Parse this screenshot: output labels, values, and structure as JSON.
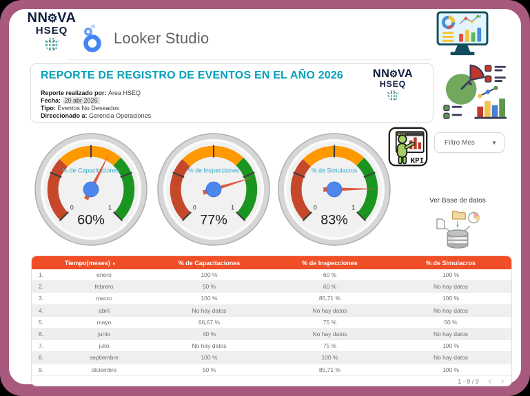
{
  "colors": {
    "frame": "#A85A7E",
    "title_accent": "#00A1BA",
    "table_header": "#F04E27",
    "gauge_label": "#2FB0CC",
    "needle": "#E2593E",
    "hub": "#4D86EC"
  },
  "brand": {
    "part1": "NN",
    "gear_glyph": "⚙",
    "part2": "VA",
    "line2": "HSEQ"
  },
  "app": {
    "name": "Looker Studio"
  },
  "title_card": {
    "title": "REPORTE DE REGISTRO DE EVENTOS EN EL AÑO 2026",
    "meta": [
      {
        "label": "Reporte realizado por:",
        "value": "Área HSEQ",
        "highlight": false
      },
      {
        "label": "Fecha:",
        "value": "20 abr 2026",
        "highlight": true
      },
      {
        "label": "Tipo:",
        "value": "Eventos No Deseados",
        "highlight": false
      },
      {
        "label": "Direccionado a:",
        "value": "Gerencia Operaciones",
        "highlight": false
      }
    ]
  },
  "controls": {
    "filter_label": "Filtro Mes",
    "kpi_caption": "KPI",
    "view_db_label": "Ver Base de datos"
  },
  "chart_data": [
    {
      "type": "gauge",
      "title": "% de Capacitaciones",
      "min": 0,
      "max": 1,
      "value": 0.6,
      "display": "60%",
      "min_label": "0",
      "max_label": "1",
      "zones": [
        {
          "from": 0,
          "to": 0.33,
          "color": "#C5482B"
        },
        {
          "from": 0.33,
          "to": 0.66,
          "color": "#FF9900"
        },
        {
          "from": 0.66,
          "to": 1,
          "color": "#1A9620"
        }
      ]
    },
    {
      "type": "gauge",
      "title": "% de Inspecciones",
      "min": 0,
      "max": 1,
      "value": 0.77,
      "display": "77%",
      "min_label": "0",
      "max_label": "1",
      "zones": [
        {
          "from": 0,
          "to": 0.33,
          "color": "#C5482B"
        },
        {
          "from": 0.33,
          "to": 0.66,
          "color": "#FF9900"
        },
        {
          "from": 0.66,
          "to": 1,
          "color": "#1A9620"
        }
      ]
    },
    {
      "type": "gauge",
      "title": "% de Simulacros",
      "min": 0,
      "max": 1,
      "value": 0.83,
      "display": "83%",
      "min_label": "0",
      "max_label": "1",
      "zones": [
        {
          "from": 0,
          "to": 0.33,
          "color": "#C5482B"
        },
        {
          "from": 0.33,
          "to": 0.66,
          "color": "#FF9900"
        },
        {
          "from": 0.66,
          "to": 1,
          "color": "#1A9620"
        }
      ]
    },
    {
      "type": "table",
      "columns": [
        "Tiempo(meses)",
        "% de Capacitaciones",
        "% de Inspecciones",
        "% de Simulacros"
      ],
      "sort_indicator": "▲",
      "rows": [
        [
          "1.",
          "enero",
          "100 %",
          "60 %",
          "100 %"
        ],
        [
          "2.",
          "febrero",
          "50 %",
          "60 %",
          "No hay datos"
        ],
        [
          "3.",
          "marzo",
          "100 %",
          "85,71 %",
          "100 %"
        ],
        [
          "4.",
          "abril",
          "No hay datos",
          "No hay datos",
          "No hay datos"
        ],
        [
          "5.",
          "mayo",
          "66,67 %",
          "75 %",
          "50 %"
        ],
        [
          "6.",
          "junio",
          "40 %",
          "No hay datos",
          "No hay datos"
        ],
        [
          "7.",
          "julio",
          "No hay datos",
          "75 %",
          "100 %"
        ],
        [
          "8.",
          "septiembre",
          "100 %",
          "100 %",
          "No hay datos"
        ],
        [
          "9.",
          "diciembre",
          "50 %",
          "85,71 %",
          "100 %"
        ]
      ],
      "pagination": "1 - 9 / 9"
    }
  ]
}
